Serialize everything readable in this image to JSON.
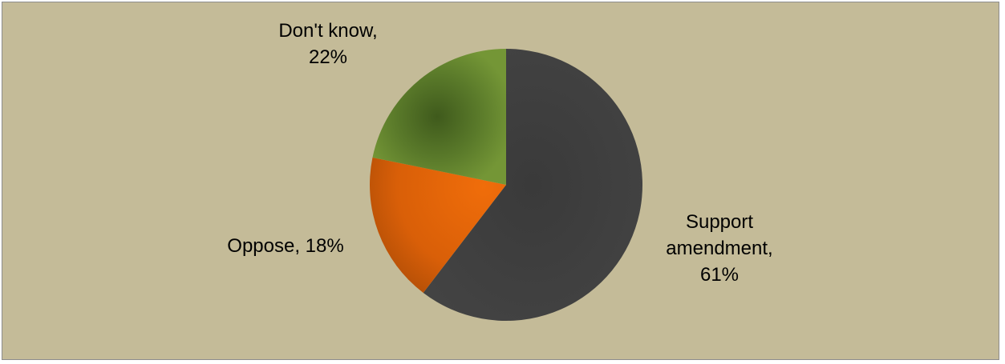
{
  "chart_data": {
    "type": "pie",
    "title": "",
    "start_angle_deg": 0,
    "direction": "clockwise",
    "slices": [
      {
        "label": "Support amendment",
        "value": 61,
        "label_lines": [
          "Support",
          "amendment,",
          "61%"
        ],
        "color": "#404040"
      },
      {
        "label": "Oppose",
        "value": 18,
        "label_lines": [
          "Oppose, 18%"
        ],
        "color": "#e0640a"
      },
      {
        "label": "Don't know",
        "value": 22,
        "label_lines": [
          "Don't know,",
          "22%"
        ],
        "color": "#6e8f34"
      }
    ],
    "legend": "none",
    "background_color": "#c4bb98",
    "border_color": "#8c8c8c"
  }
}
